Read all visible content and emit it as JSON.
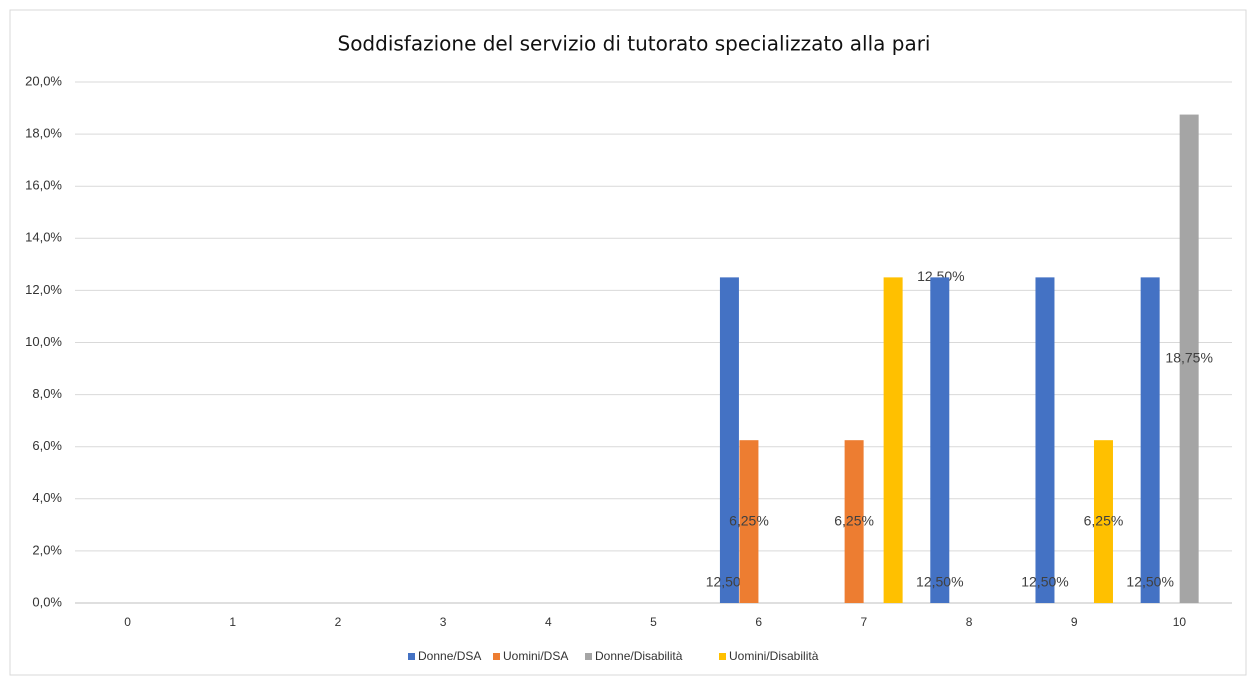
{
  "chart_data": {
    "type": "bar",
    "title": "Soddisfazione del servizio di tutorato specializzato alla pari",
    "categories": [
      "0",
      "1",
      "2",
      "3",
      "4",
      "5",
      "6",
      "7",
      "8",
      "9",
      "10"
    ],
    "series": [
      {
        "name": "Donne/DSA",
        "color": "#4472c4",
        "values": [
          null,
          null,
          null,
          null,
          null,
          null,
          12.5,
          null,
          12.5,
          12.5,
          12.5
        ],
        "value_labels": [
          null,
          null,
          null,
          null,
          null,
          null,
          "12,50%",
          null,
          "12,50%",
          "12,50%",
          "12,50%"
        ]
      },
      {
        "name": "Uomini/DSA",
        "color": "#ed7d31",
        "values": [
          null,
          null,
          null,
          null,
          null,
          null,
          6.25,
          6.25,
          null,
          null,
          null
        ],
        "value_labels": [
          null,
          null,
          null,
          null,
          null,
          null,
          "6,25%",
          "6,25%",
          null,
          null,
          null
        ]
      },
      {
        "name": "Donne/Disabilità",
        "color": "#a5a5a5",
        "values": [
          null,
          null,
          null,
          null,
          null,
          null,
          null,
          null,
          null,
          null,
          18.75
        ],
        "value_labels": [
          null,
          null,
          null,
          null,
          null,
          null,
          null,
          null,
          null,
          null,
          "18,75%"
        ]
      },
      {
        "name": "Uomini/Disabilità",
        "color": "#ffc000",
        "values": [
          null,
          null,
          null,
          null,
          null,
          null,
          null,
          12.5,
          null,
          6.25,
          null
        ],
        "value_labels": [
          null,
          null,
          null,
          null,
          null,
          null,
          null,
          "12,50%",
          null,
          "6,25%",
          null
        ]
      }
    ],
    "ylim": [
      0,
      20
    ],
    "yticks": [
      {
        "value": 0,
        "label": "0,0%"
      },
      {
        "value": 2,
        "label": "2,0%"
      },
      {
        "value": 4,
        "label": "4,0%"
      },
      {
        "value": 6,
        "label": "6,0%"
      },
      {
        "value": 8,
        "label": "8,0%"
      },
      {
        "value": 10,
        "label": "10,0%"
      },
      {
        "value": 12,
        "label": "12,0%"
      },
      {
        "value": 14,
        "label": "14,0%"
      },
      {
        "value": 16,
        "label": "16,0%"
      },
      {
        "value": 18,
        "label": "18,0%"
      },
      {
        "value": 20,
        "label": "20,0%"
      }
    ],
    "grid": true,
    "legend": "bottom"
  }
}
